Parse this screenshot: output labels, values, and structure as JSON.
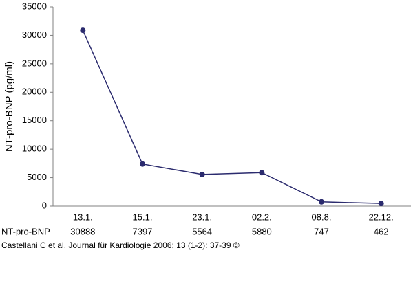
{
  "chart_data": {
    "type": "line",
    "y_label": "NT-pro-BNP (pg/ml)",
    "categories": [
      "13.1.",
      "15.1.",
      "23.1.",
      "02.2.",
      "08.8.",
      "22.12."
    ],
    "series": [
      {
        "name": "NT-pro-BNP",
        "color": "#2b2b6e",
        "values": [
          30888,
          7397,
          5564,
          5880,
          747,
          462
        ]
      }
    ],
    "ylim": [
      0,
      35000
    ],
    "yticks": [
      0,
      5000,
      10000,
      15000,
      20000,
      25000,
      30000,
      35000
    ],
    "grid": false,
    "source": "Castellani C et al. Journal für Kardiologie 2006; 13 (1-2): 37-39 ©"
  }
}
